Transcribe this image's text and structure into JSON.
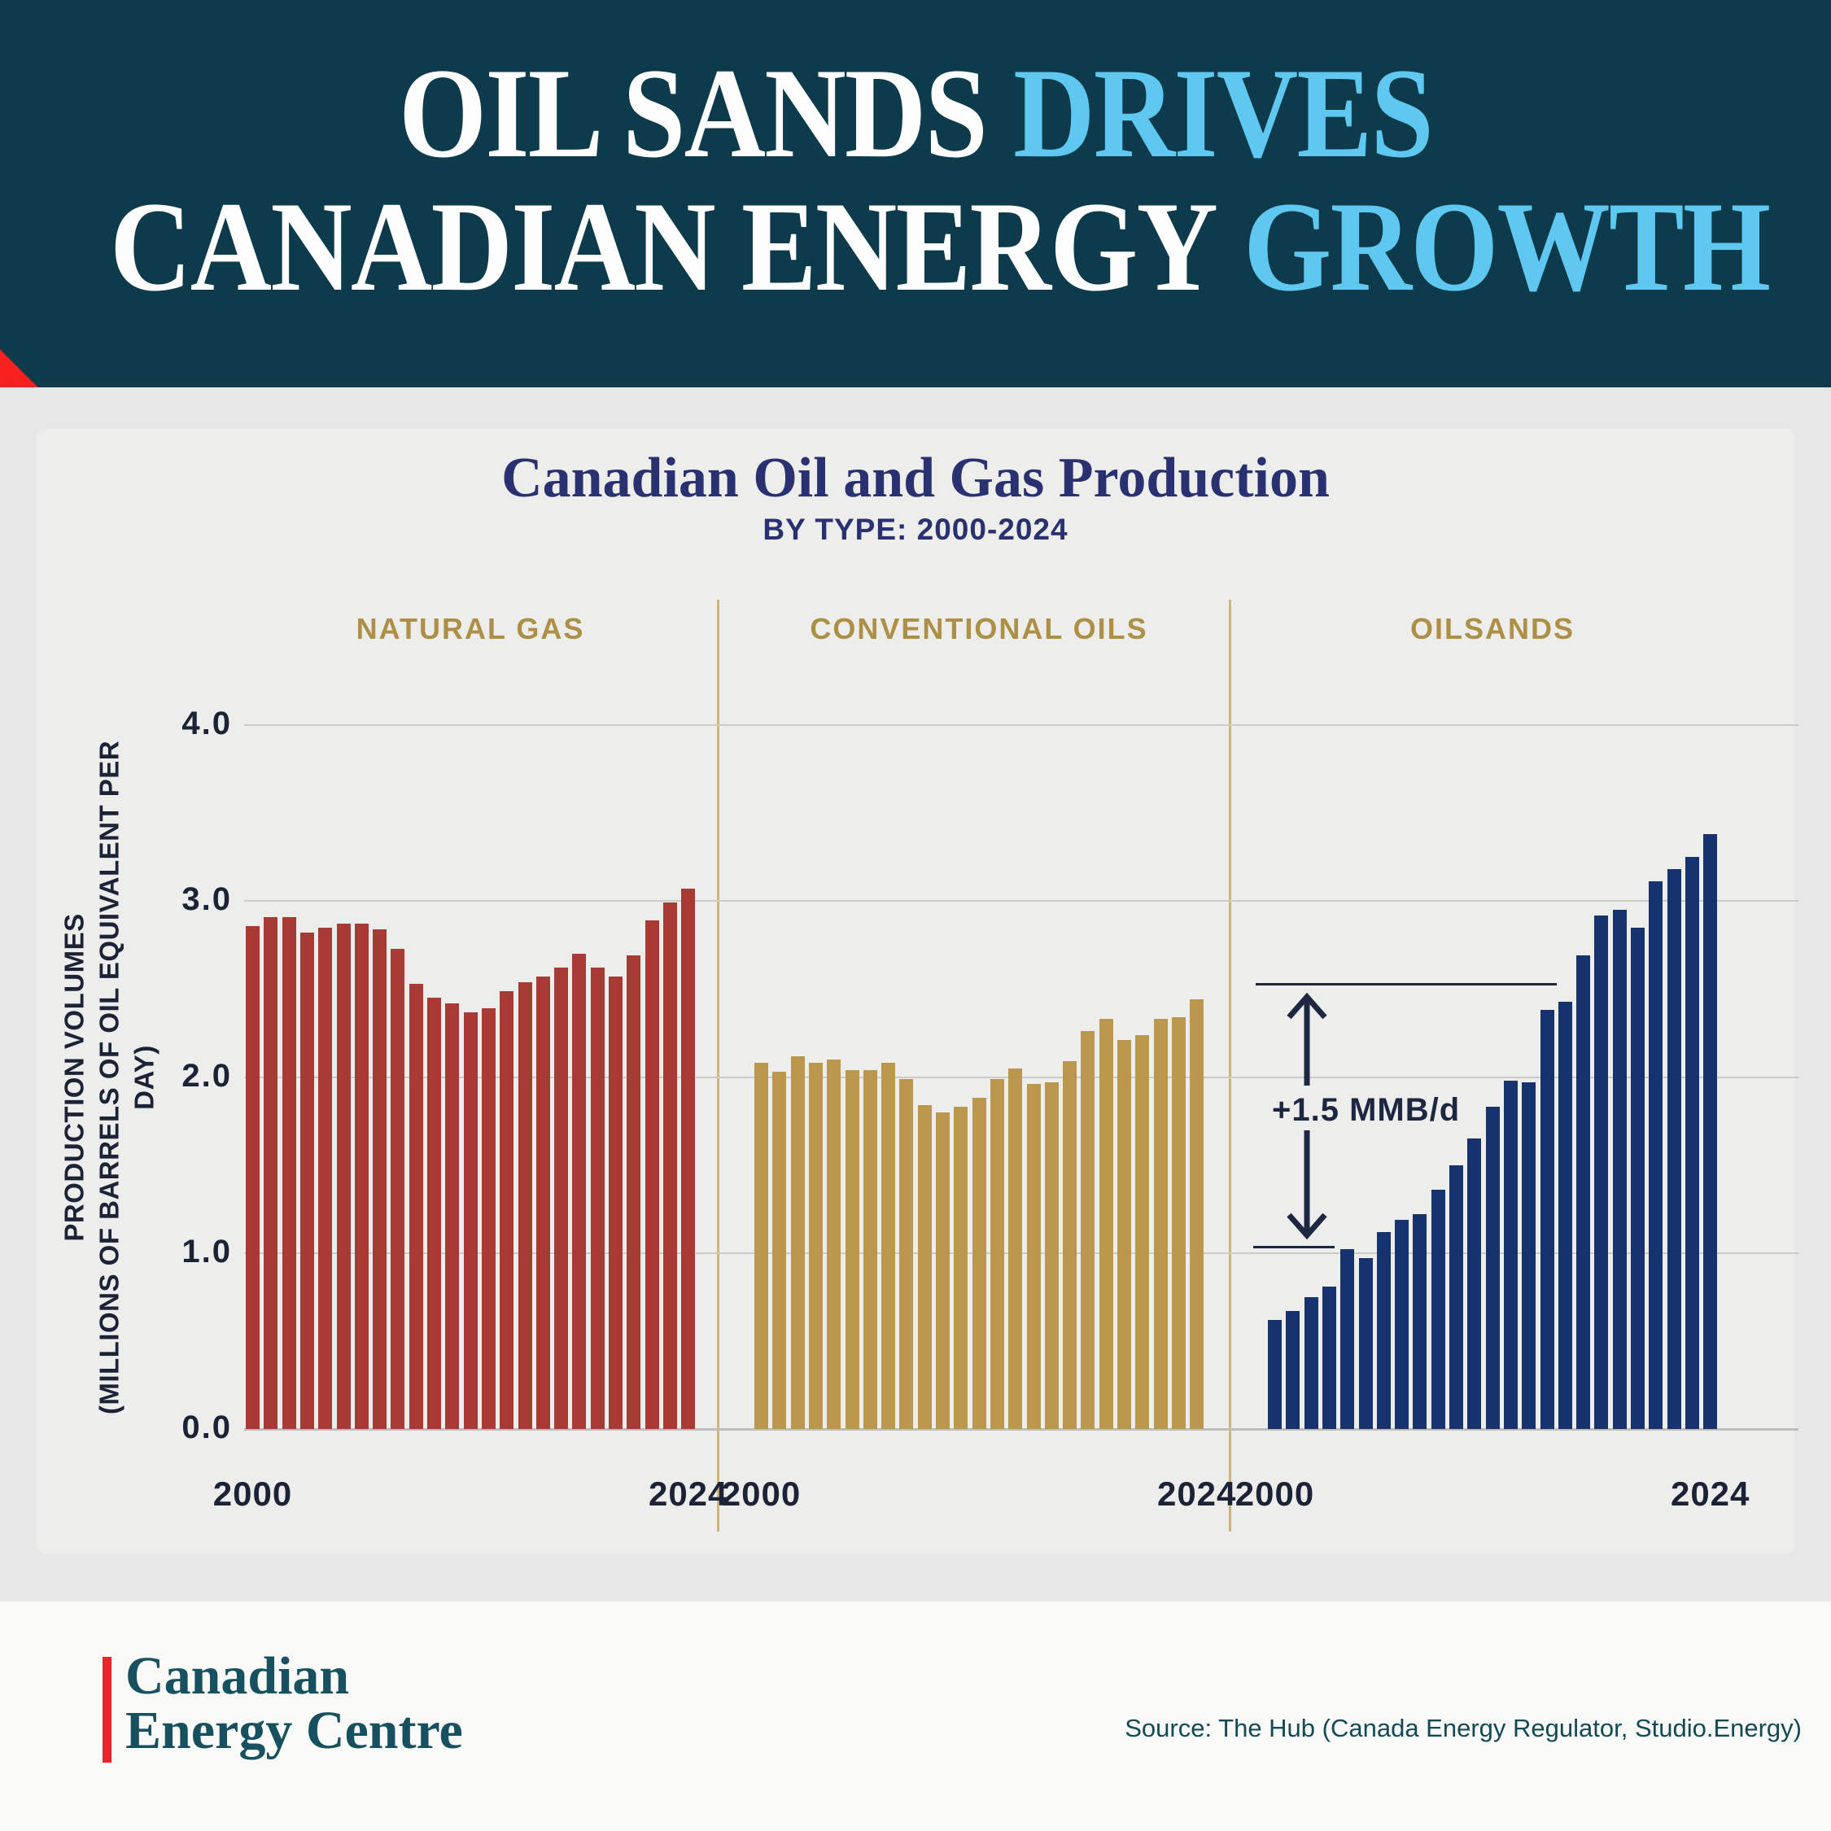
{
  "header": {
    "line1_white": "OIL SANDS",
    "line1_blue": "DRIVES",
    "line2_white": "CANADIAN ENERGY",
    "line2_blue": "GROWTH",
    "colors": {
      "background": "#0e3b4b",
      "headline_white": "#fdfdfd",
      "headline_blue": "#5ec8f0",
      "accent_red": "#f92020"
    }
  },
  "chart": {
    "title": "Canadian Oil and Gas Production",
    "subtitle": "BY TYPE: 2000-2024",
    "y_axis_title_line1": "PRODUCTION VOLUMES",
    "y_axis_title_line2": "(MILLIONS OF BARRELS OF OIL EQUIVALENT PER DAY)"
  },
  "chart_data": {
    "type": "bar",
    "title": "Canadian Oil and Gas Production",
    "subtitle": "BY TYPE: 2000-2024",
    "ylabel": "PRODUCTION VOLUMES (MILLIONS OF BARRELS OF OIL EQUIVALENT PER DAY)",
    "ylim": [
      0,
      4
    ],
    "ytick_labels": [
      "0.0",
      "1.0",
      "2.0",
      "3.0",
      "4.0"
    ],
    "ytick_values": [
      0,
      1,
      2,
      3,
      4
    ],
    "x_edge_labels": [
      "2000",
      "2024"
    ],
    "grid": "horizontal",
    "legend_position": "panel titles above each facet",
    "categories": [
      2000,
      2001,
      2002,
      2003,
      2004,
      2005,
      2006,
      2007,
      2008,
      2009,
      2010,
      2011,
      2012,
      2013,
      2014,
      2015,
      2016,
      2017,
      2018,
      2019,
      2020,
      2021,
      2022,
      2023,
      2024
    ],
    "series": [
      {
        "name": "NATURAL GAS",
        "color": "#a83a35",
        "values": [
          2.86,
          2.91,
          2.91,
          2.82,
          2.85,
          2.87,
          2.87,
          2.84,
          2.73,
          2.53,
          2.45,
          2.42,
          2.37,
          2.39,
          2.49,
          2.54,
          2.57,
          2.62,
          2.7,
          2.62,
          2.57,
          2.69,
          2.89,
          2.99,
          3.07
        ]
      },
      {
        "name": "CONVENTIONAL OILS",
        "color": "#bb974e",
        "values": [
          2.08,
          2.03,
          2.12,
          2.08,
          2.1,
          2.04,
          2.04,
          2.08,
          1.99,
          1.84,
          1.8,
          1.83,
          1.88,
          1.99,
          2.05,
          1.96,
          1.97,
          2.09,
          2.26,
          2.33,
          2.21,
          2.24,
          2.33,
          2.34,
          2.44
        ]
      },
      {
        "name": "OILSANDS",
        "color": "#16336e",
        "values": [
          0.62,
          0.67,
          0.75,
          0.81,
          1.02,
          0.97,
          1.12,
          1.19,
          1.22,
          1.36,
          1.5,
          1.65,
          1.83,
          1.98,
          1.97,
          2.38,
          2.43,
          2.69,
          2.92,
          2.95,
          2.85,
          3.11,
          3.18,
          3.25,
          3.38
        ]
      }
    ],
    "annotation": {
      "label": "+1.5 MMB/d",
      "upper_value": 2.53,
      "lower_value": 1.03,
      "color": "#1d2742"
    }
  },
  "footer": {
    "logo_line1": "Canadian",
    "logo_line2": "Energy Centre",
    "source": "Source: The Hub (Canada Energy Regulator, Studio.Energy)"
  }
}
